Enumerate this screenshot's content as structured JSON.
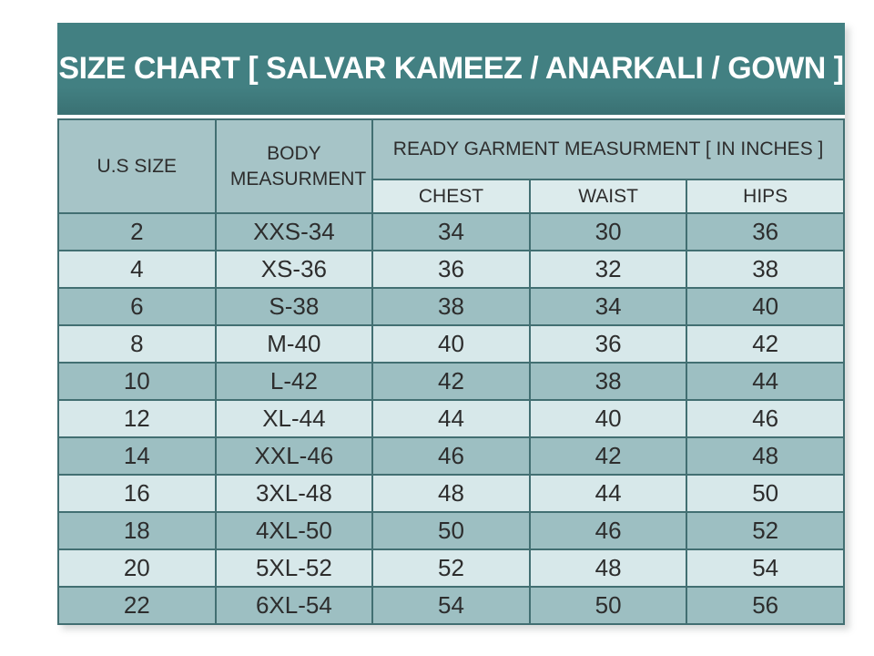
{
  "chart_data": {
    "type": "table",
    "title": "SIZE CHART [ SALVAR KAMEEZ / ANARKALI / GOWN ]",
    "header": {
      "us_size": "U.S SIZE",
      "body_measurement": "BODY MEASURMENT",
      "garment_group": "READY GARMENT MEASURMENT [ IN INCHES ]",
      "sub_columns": [
        "CHEST",
        "WAIST",
        "HIPS"
      ]
    },
    "rows": [
      [
        "2",
        "XXS-34",
        "34",
        "30",
        "36"
      ],
      [
        "4",
        "XS-36",
        "36",
        "32",
        "38"
      ],
      [
        "6",
        "S-38",
        "38",
        "34",
        "40"
      ],
      [
        "8",
        "M-40",
        "40",
        "36",
        "42"
      ],
      [
        "10",
        "L-42",
        "42",
        "38",
        "44"
      ],
      [
        "12",
        "XL-44",
        "44",
        "40",
        "46"
      ],
      [
        "14",
        "XXL-46",
        "46",
        "42",
        "48"
      ],
      [
        "16",
        "3XL-48",
        "48",
        "44",
        "50"
      ],
      [
        "18",
        "4XL-50",
        "50",
        "46",
        "52"
      ],
      [
        "20",
        "5XL-52",
        "52",
        "48",
        "54"
      ],
      [
        "22",
        "6XL-54",
        "54",
        "50",
        "56"
      ]
    ],
    "layout_hints": {
      "row_striping": "odd rows dark, even rows light",
      "grid": true
    }
  },
  "colors": {
    "title_bar_bg": "#417f80",
    "title_text": "#ffffff",
    "header_bg": "#a6c4c7",
    "subheader_bg": "#dcebec",
    "row_dark_bg": "#9dbfc2",
    "row_light_bg": "#d7e8ea",
    "border": "#426f72",
    "outer_border": "#30585b",
    "cell_text": "#2d2d2d",
    "page_bg": "#ffffff"
  }
}
